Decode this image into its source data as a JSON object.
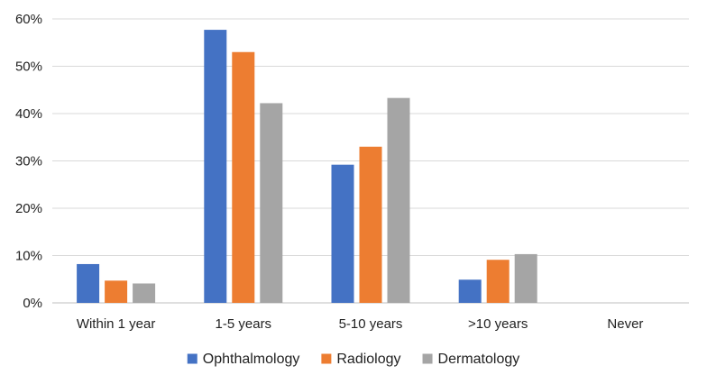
{
  "chart_data": {
    "type": "bar",
    "title": "",
    "xlabel": "",
    "ylabel": "",
    "categories": [
      "Within 1 year",
      "1-5 years",
      "5-10 years",
      ">10 years",
      "Never"
    ],
    "series": [
      {
        "name": "Ophthalmology",
        "color": "#4472C4",
        "values": [
          8.2,
          57.7,
          29.2,
          4.9,
          0
        ]
      },
      {
        "name": "Radiology",
        "color": "#ED7D31",
        "values": [
          4.7,
          53.0,
          33.0,
          9.1,
          0
        ]
      },
      {
        "name": "Dermatology",
        "color": "#A5A5A5",
        "values": [
          4.1,
          42.2,
          43.3,
          10.3,
          0
        ]
      }
    ],
    "ylim": [
      0,
      60
    ],
    "yticks": [
      0,
      10,
      20,
      30,
      40,
      50,
      60
    ],
    "ytick_labels": [
      "0%",
      "10%",
      "20%",
      "30%",
      "40%",
      "50%",
      "60%"
    ],
    "grid": true,
    "legend_position": "bottom"
  }
}
